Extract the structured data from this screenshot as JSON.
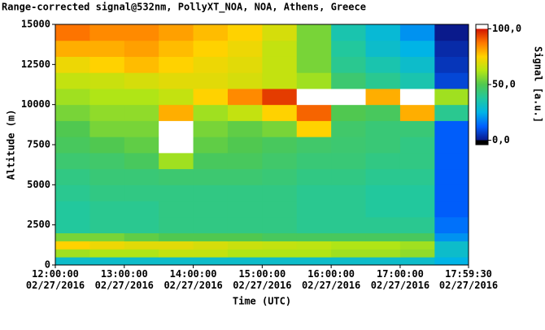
{
  "chart_data": {
    "type": "heatmap",
    "title": "Range-corrected signal@532nm, PollyXT_NOA, NOA, Athens, Greece",
    "x_label": "Time (UTC)",
    "y_label": "Altitude (m)",
    "colorbar_label": "Signal [a.u.]",
    "x_edges": [
      "2016-02-27T12:00:00",
      "2016-02-27T12:30:00",
      "2016-02-27T13:00:00",
      "2016-02-27T13:30:00",
      "2016-02-27T14:00:00",
      "2016-02-27T14:30:00",
      "2016-02-27T15:00:00",
      "2016-02-27T15:30:00",
      "2016-02-27T16:00:00",
      "2016-02-27T16:30:00",
      "2016-02-27T17:00:00",
      "2016-02-27T17:30:00",
      "2016-02-27T17:59:30"
    ],
    "y_edges": [
      0,
      500,
      1000,
      1500,
      2000,
      3000,
      4000,
      5000,
      6000,
      7000,
      8000,
      9000,
      10000,
      11000,
      12000,
      13000,
      14000,
      15000
    ],
    "z": [
      [
        30,
        30,
        30,
        30,
        30,
        30,
        30,
        30,
        30,
        30,
        30,
        25
      ],
      [
        60,
        62,
        62,
        65,
        65,
        62,
        62,
        62,
        60,
        60,
        58,
        30
      ],
      [
        75,
        72,
        70,
        70,
        68,
        66,
        65,
        64,
        62,
        62,
        60,
        30
      ],
      [
        55,
        55,
        52,
        50,
        50,
        50,
        48,
        48,
        48,
        48,
        48,
        20
      ],
      [
        38,
        40,
        40,
        42,
        42,
        42,
        42,
        40,
        40,
        40,
        40,
        15
      ],
      [
        38,
        40,
        40,
        42,
        42,
        42,
        42,
        40,
        40,
        38,
        38,
        12
      ],
      [
        40,
        42,
        42,
        42,
        42,
        42,
        42,
        40,
        40,
        38,
        38,
        12
      ],
      [
        42,
        44,
        44,
        45,
        45,
        45,
        44,
        42,
        42,
        40,
        40,
        12
      ],
      [
        45,
        46,
        48,
        60,
        48,
        48,
        46,
        44,
        44,
        42,
        42,
        12
      ],
      [
        48,
        50,
        52,
        105,
        52,
        50,
        48,
        46,
        45,
        44,
        42,
        12
      ],
      [
        50,
        55,
        55,
        105,
        55,
        52,
        55,
        75,
        46,
        44,
        44,
        12
      ],
      [
        55,
        58,
        58,
        80,
        60,
        65,
        75,
        90,
        50,
        48,
        80,
        40
      ],
      [
        60,
        62,
        62,
        65,
        75,
        85,
        95,
        105,
        105,
        80,
        105,
        60
      ],
      [
        65,
        66,
        68,
        70,
        70,
        68,
        65,
        60,
        45,
        40,
        35,
        8
      ],
      [
        72,
        75,
        78,
        75,
        72,
        70,
        65,
        55,
        40,
        35,
        30,
        5
      ],
      [
        80,
        80,
        82,
        78,
        75,
        72,
        65,
        55,
        38,
        30,
        25,
        3
      ],
      [
        88,
        85,
        85,
        82,
        78,
        75,
        68,
        55,
        35,
        28,
        20,
        0
      ]
    ],
    "xlim": [
      "2016-02-27T12:00:00",
      "2016-02-27T17:59:30"
    ],
    "xticks": [
      {
        "value": "2016-02-27T12:00:00",
        "label": "12:00:00\n02/27/2016"
      },
      {
        "value": "2016-02-27T13:00:00",
        "label": "13:00:00\n02/27/2016"
      },
      {
        "value": "2016-02-27T14:00:00",
        "label": "14:00:00\n02/27/2016"
      },
      {
        "value": "2016-02-27T15:00:00",
        "label": "15:00:00\n02/27/2016"
      },
      {
        "value": "2016-02-27T16:00:00",
        "label": "16:00:00\n02/27/2016"
      },
      {
        "value": "2016-02-27T17:00:00",
        "label": "17:00:00\n02/27/2016"
      },
      {
        "value": "2016-02-27T17:59:30",
        "label": "17:59:30\n02/27/2016"
      }
    ],
    "ylim": [
      0,
      15000
    ],
    "yticks": [
      0,
      2500,
      5000,
      7500,
      10000,
      12500,
      15000
    ],
    "clim": [
      -4,
      104
    ],
    "cticks": [
      {
        "value": 100,
        "label": "100,0"
      },
      {
        "value": 50,
        "label": "50,0"
      },
      {
        "value": 0,
        "label": "0,0"
      }
    ],
    "colormap": [
      "#0a1a8c",
      "#0060ff",
      "#00b4e6",
      "#20c8a0",
      "#50c850",
      "#b4e614",
      "#ffd200",
      "#ff7800",
      "#d21400"
    ],
    "under_color": "#000000",
    "over_color": "#ffffff"
  }
}
